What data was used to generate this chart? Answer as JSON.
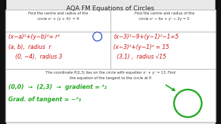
{
  "title": "AQA FM Equations of Circles",
  "bg_color": "#e8e8e8",
  "panel_bg": "#ffffff",
  "title_color": "#222222",
  "red_color": "#cc1111",
  "green_color": "#22aa22",
  "blue_color": "#3355cc",
  "black_color": "#333333",
  "line_color": "#aaaaaa",
  "col1_header_line1": "Find the centre and radius of the",
  "col1_header_line2": "circle x² + (y + 4)² = 9",
  "col2_header_line1": "Find the centre and radius of the",
  "col2_header_line2": "circle x² − 6x + y² − 2y = 5",
  "col1_red": [
    "(x−a)²+(y−b)²= r²",
    "(a, b),  radius  r",
    "    (0, −4),  radius 3"
  ],
  "col2_red": [
    "(x−3)²−9+(y−1)²−1=5",
    "(x−3)²+(y−1)² = 15",
    "  (3,1) ,  radius √15"
  ],
  "bottom_line1": "The coordinate P(2,3) lies on the circle with equation x² + y² = 13. Find",
  "bottom_line2": "the equation of the tangent to the circle at P.",
  "green_line1": "(0,0)  →  (2,3)  →  gradient = ³₂",
  "green_line2": "Grad. of tangent = −²₃",
  "figsize": [
    3.2,
    1.8
  ],
  "dpi": 100
}
